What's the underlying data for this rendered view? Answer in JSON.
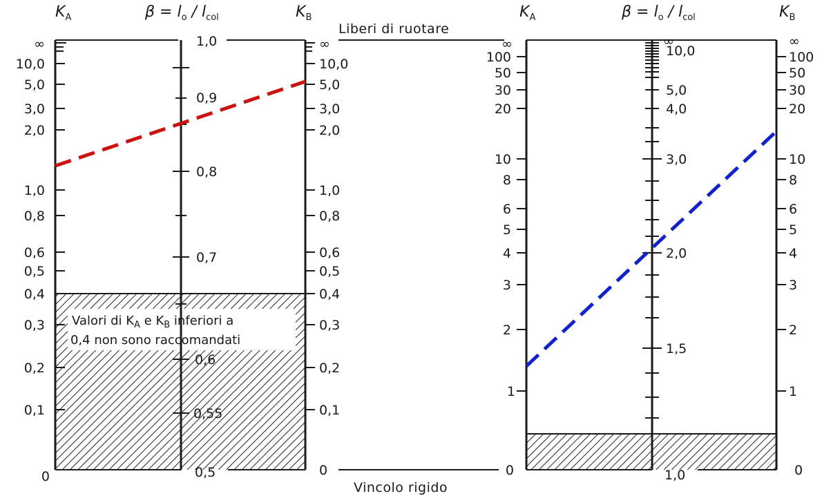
{
  "headers": {
    "ka": "K",
    "ka_sub": "A",
    "kb": "K",
    "kb_sub": "B",
    "beta": "β = l",
    "beta_sub_o": "o",
    "beta_slash": " / l",
    "beta_sub_col": "col"
  },
  "center": {
    "top_label": "Liberi di ruotare",
    "bottom_label": "Vincolo rigido"
  },
  "left_chart": {
    "ka_ticks": [
      "∞",
      "10,0",
      "5,0",
      "3,0",
      "2,0",
      "1,0",
      "0,8",
      "0,6",
      "0,5",
      "0,4",
      "0,3",
      "0,2",
      "0,1",
      "0"
    ],
    "kb_ticks": [
      "∞",
      "10,0",
      "5,0",
      "3,0",
      "2,0",
      "1,0",
      "0,8",
      "0,6",
      "0,5",
      "0,4",
      "0,3",
      "0,2",
      "0,1",
      "0"
    ],
    "beta_ticks": [
      "1,0",
      "0,9",
      "0,8",
      "0,7",
      "0,6",
      "0,55",
      "0,5"
    ],
    "note_line1": "Valori di K",
    "note_sub_a": "A",
    "note_mid": " e K",
    "note_sub_b": "B",
    "note_end": " inferiori a",
    "note_line2": "0,4 non sono raccomandati",
    "dashed_line_color": "#cc1111"
  },
  "right_chart": {
    "ka_ticks": [
      "∞",
      "100",
      "50",
      "30",
      "20",
      "10",
      "8",
      "6",
      "5",
      "4",
      "3",
      "2",
      "1",
      "0"
    ],
    "kb_ticks": [
      "∞",
      "100",
      "50",
      "30",
      "20",
      "10",
      "8",
      "6",
      "5",
      "4",
      "3",
      "2",
      "1",
      "0"
    ],
    "beta_ticks": [
      "∞",
      "10,0",
      "5,0",
      "4,0",
      "3,0",
      "2,0",
      "1,5",
      "1,0"
    ],
    "dashed_line_color": "#1122cc"
  }
}
